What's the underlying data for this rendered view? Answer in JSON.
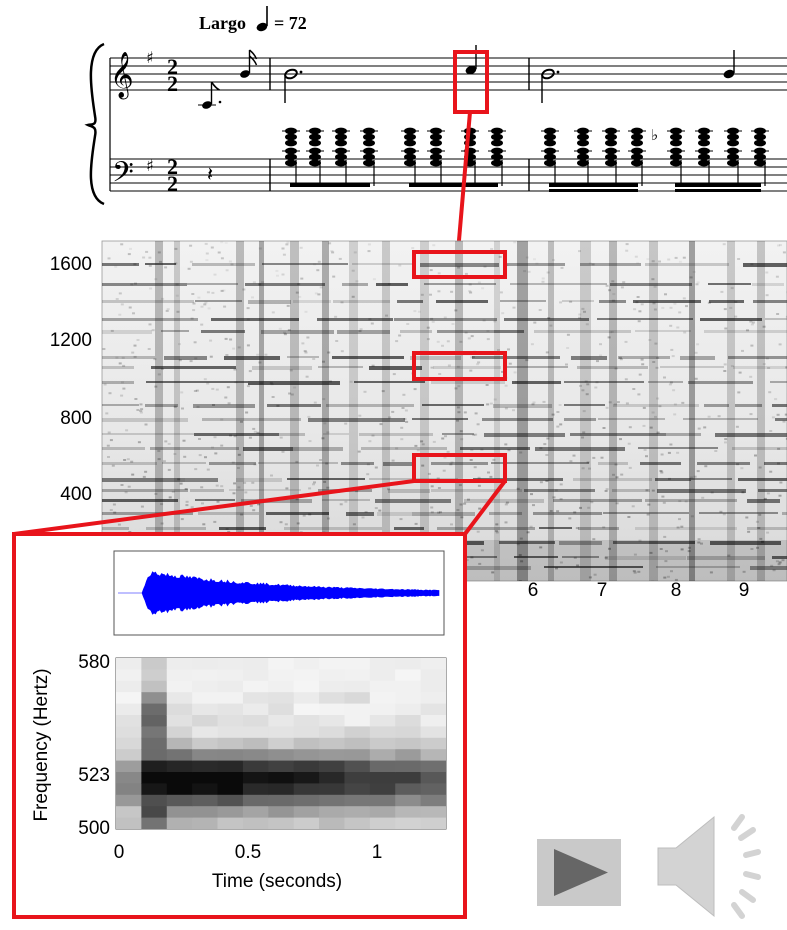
{
  "score": {
    "tempo_label": "Largo",
    "tempo_value": "= 72",
    "time_signature_top": "2",
    "time_signature_bottom": "2"
  },
  "spectrogram": {
    "y_ticks": [
      "1600",
      "1200",
      "800",
      "400"
    ],
    "x_ticks": [
      "6",
      "7",
      "8",
      "9"
    ]
  },
  "inset": {
    "ylabel": "Frequency (Hertz)",
    "xlabel": "Time (seconds)",
    "y_ticks": [
      "580",
      "523",
      "500"
    ],
    "x_ticks": [
      "0",
      "0.5",
      "1"
    ],
    "waveform_color": "#0000ff"
  },
  "colors": {
    "highlight": "#e8141b",
    "control_gray": "#c9c9c9",
    "control_dark": "#666666"
  },
  "icons": {
    "play": "play-triangle-icon",
    "speaker": "speaker-icon"
  }
}
